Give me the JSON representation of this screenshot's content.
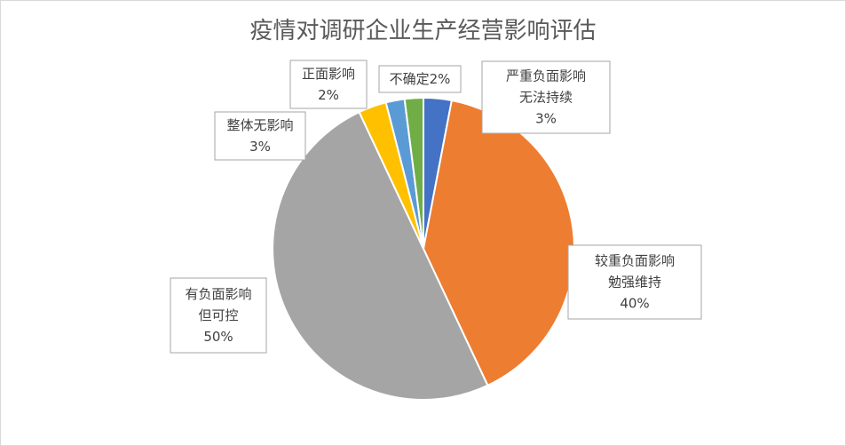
{
  "chart_data": {
    "type": "pie",
    "title": "疫情对调研企业生产经营影响评估",
    "slices": [
      {
        "lines": [
          "严重负面影响",
          "无法持续",
          "3%"
        ],
        "value": 3,
        "color": "#4472C4"
      },
      {
        "lines": [
          "较重负面影响",
          "勉强维持",
          "40%"
        ],
        "value": 40,
        "color": "#ED7D31"
      },
      {
        "lines": [
          "有负面影响",
          "但可控",
          "50%"
        ],
        "value": 50,
        "color": "#A5A5A5"
      },
      {
        "lines": [
          "整体无影响",
          "3%"
        ],
        "value": 3,
        "color": "#FFC000"
      },
      {
        "lines": [
          "正面影响",
          "2%"
        ],
        "value": 2,
        "color": "#5B9BD5"
      },
      {
        "lines": [
          "不确定2%"
        ],
        "value": 2,
        "color": "#70AD47"
      }
    ]
  }
}
